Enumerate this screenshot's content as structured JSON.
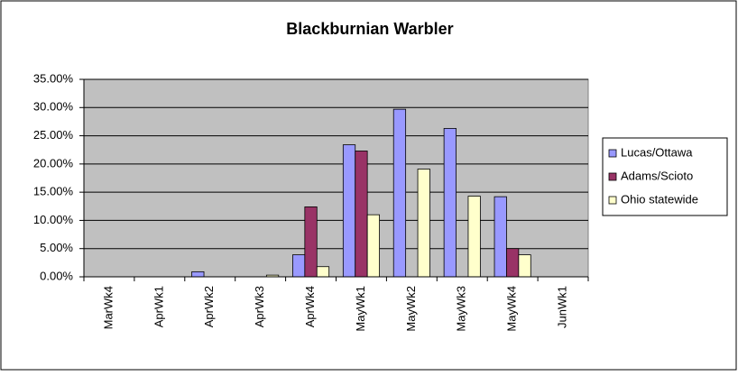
{
  "chart_data": {
    "type": "bar",
    "title": "Blackburnian Warbler",
    "categories": [
      "MarWk4",
      "AprWk1",
      "AprWk2",
      "AprWk3",
      "AprWk4",
      "MayWk1",
      "MayWk2",
      "MayWk3",
      "MayWk4",
      "JunWk1"
    ],
    "series": [
      {
        "name": "Lucas/Ottawa",
        "color": "#9999ff",
        "values": [
          0,
          0,
          0.9,
          0,
          3.9,
          23.4,
          29.7,
          26.3,
          14.2,
          0
        ]
      },
      {
        "name": "Adams/Scioto",
        "color": "#993366",
        "values": [
          0,
          0,
          0,
          0,
          12.4,
          22.3,
          0,
          0,
          5.0,
          0
        ]
      },
      {
        "name": "Ohio statewide",
        "color": "#ffffcc",
        "values": [
          0,
          0,
          0,
          0.3,
          1.8,
          11.0,
          19.1,
          14.3,
          3.9,
          0
        ]
      }
    ],
    "ylim": [
      0,
      35
    ],
    "yticks": [
      {
        "value": 0,
        "label": "0.00%"
      },
      {
        "value": 5,
        "label": "5.00%"
      },
      {
        "value": 10,
        "label": "10.00%"
      },
      {
        "value": 15,
        "label": "15.00%"
      },
      {
        "value": 20,
        "label": "20.00%"
      },
      {
        "value": 25,
        "label": "25.00%"
      },
      {
        "value": 30,
        "label": "30.00%"
      },
      {
        "value": 35,
        "label": "35.00%"
      }
    ],
    "grid": true,
    "legend": "right",
    "plot_background": "#c0c0c0"
  }
}
